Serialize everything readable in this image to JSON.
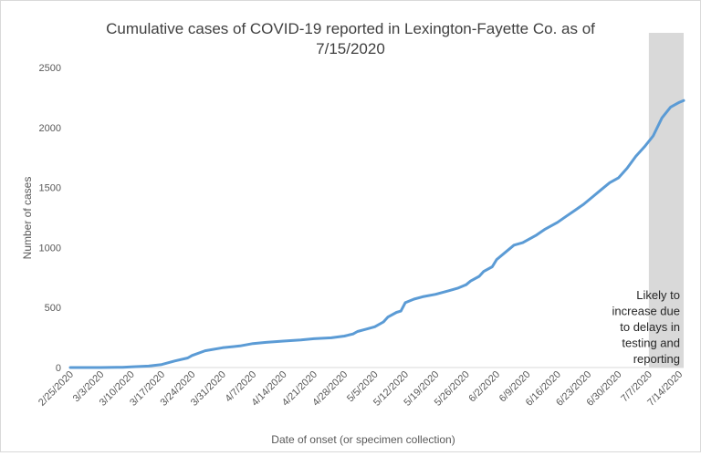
{
  "chart_data": {
    "type": "line",
    "title_lines": [
      "Cumulative cases of COVID-19 reported in Lexington-Fayette Co.  as of",
      "7/15/2020"
    ],
    "xlabel": "Date of onset (or specimen collection)",
    "ylabel": "Number of cases",
    "ylim": [
      0,
      2500
    ],
    "yticks": [
      0,
      500,
      1000,
      1500,
      2000,
      2500
    ],
    "xlim": [
      "2/25/2020",
      "7/15/2020"
    ],
    "xtick_labels": [
      "2/25/2020",
      "3/3/2020",
      "3/10/2020",
      "3/17/2020",
      "3/24/2020",
      "3/31/2020",
      "4/7/2020",
      "4/14/2020",
      "4/21/2020",
      "4/28/2020",
      "5/5/2020",
      "5/12/2020",
      "5/19/2020",
      "5/26/2020",
      "6/2/2020",
      "6/9/2020",
      "6/16/2020",
      "6/23/2020",
      "6/30/2020",
      "7/7/2020",
      "7/14/2020"
    ],
    "grid": false,
    "legend": "none",
    "series": [
      {
        "color": "#5b9bd5",
        "x": [
          "2/25/2020",
          "3/3/2020",
          "3/8/2020",
          "3/10/2020",
          "3/14/2020",
          "3/17/2020",
          "3/20/2020",
          "3/23/2020",
          "3/24/2020",
          "3/27/2020",
          "3/31/2020",
          "4/4/2020",
          "4/7/2020",
          "4/10/2020",
          "4/14/2020",
          "4/18/2020",
          "4/21/2020",
          "4/25/2020",
          "4/28/2020",
          "4/30/2020",
          "5/1/2020",
          "5/3/2020",
          "5/5/2020",
          "5/7/2020",
          "5/8/2020",
          "5/10/2020",
          "5/11/2020",
          "5/12/2020",
          "5/14/2020",
          "5/16/2020",
          "5/19/2020",
          "5/22/2020",
          "5/24/2020",
          "5/26/2020",
          "5/27/2020",
          "5/29/2020",
          "5/30/2020",
          "6/1/2020",
          "6/2/2020",
          "6/4/2020",
          "6/6/2020",
          "6/8/2020",
          "6/11/2020",
          "6/13/2020",
          "6/16/2020",
          "6/18/2020",
          "6/20/2020",
          "6/22/2020",
          "6/24/2020",
          "6/26/2020",
          "6/28/2020",
          "6/30/2020",
          "7/2/2020",
          "7/4/2020",
          "7/6/2020",
          "7/8/2020",
          "7/10/2020",
          "7/12/2020",
          "7/14/2020",
          "7/15/2020"
        ],
        "y": [
          0,
          0,
          2,
          5,
          12,
          25,
          55,
          80,
          100,
          140,
          165,
          180,
          200,
          210,
          220,
          230,
          240,
          248,
          262,
          280,
          300,
          320,
          340,
          380,
          420,
          460,
          470,
          540,
          570,
          590,
          610,
          640,
          660,
          690,
          720,
          760,
          800,
          840,
          900,
          960,
          1020,
          1040,
          1100,
          1150,
          1210,
          1260,
          1310,
          1360,
          1420,
          1480,
          1540,
          1580,
          1660,
          1760,
          1840,
          1930,
          2080,
          2170,
          2210,
          2225
        ]
      }
    ],
    "shaded_region": {
      "from": "7/7/2020",
      "to": "7/15/2020",
      "color": "#d9d9d9"
    },
    "annotation": [
      "Likely to",
      "increase due",
      "to delays in",
      "testing and",
      "reporting"
    ]
  }
}
